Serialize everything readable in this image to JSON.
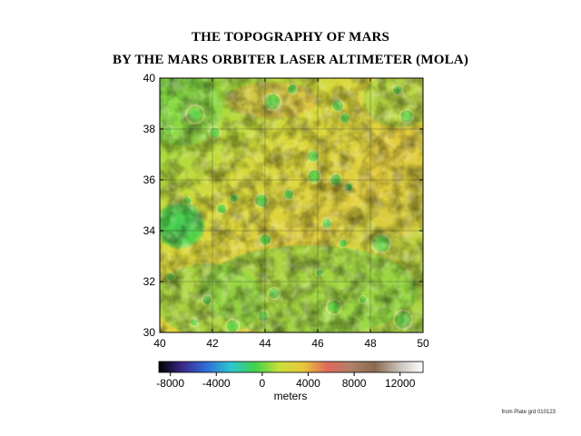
{
  "title_line1": "THE TOPOGRAPHY OF MARS",
  "title_line2": "BY THE MARS ORBITER LASER ALTIMETER (MOLA)",
  "map": {
    "x_ticks": [
      "40",
      "42",
      "44",
      "46",
      "48",
      "50"
    ],
    "y_ticks": [
      "30",
      "32",
      "34",
      "36",
      "38",
      "40"
    ],
    "lon_range": [
      40,
      50
    ],
    "lat_range": [
      30,
      40
    ],
    "grid": true,
    "colors": {
      "lowland_green": "#4fd24a",
      "mid_yellow_green": "#b8e03a",
      "highland_yellow": "#e2d23a",
      "ridge_orange": "#e6b04a"
    }
  },
  "colorbar": {
    "tick_labels": [
      "-8000",
      "-4000",
      "0",
      "4000",
      "8000",
      "12000"
    ],
    "range": [
      -9000,
      14000
    ],
    "unit_label": "meters",
    "stops": [
      "#000000",
      "#3b2a8c",
      "#2f6fd8",
      "#2fc6d0",
      "#3fd24a",
      "#c8e03a",
      "#e8c83a",
      "#e06a5a",
      "#b0806a",
      "#8a6a50",
      "#c8c0b8",
      "#ffffff"
    ]
  },
  "credit": "from Plate grd 010123"
}
